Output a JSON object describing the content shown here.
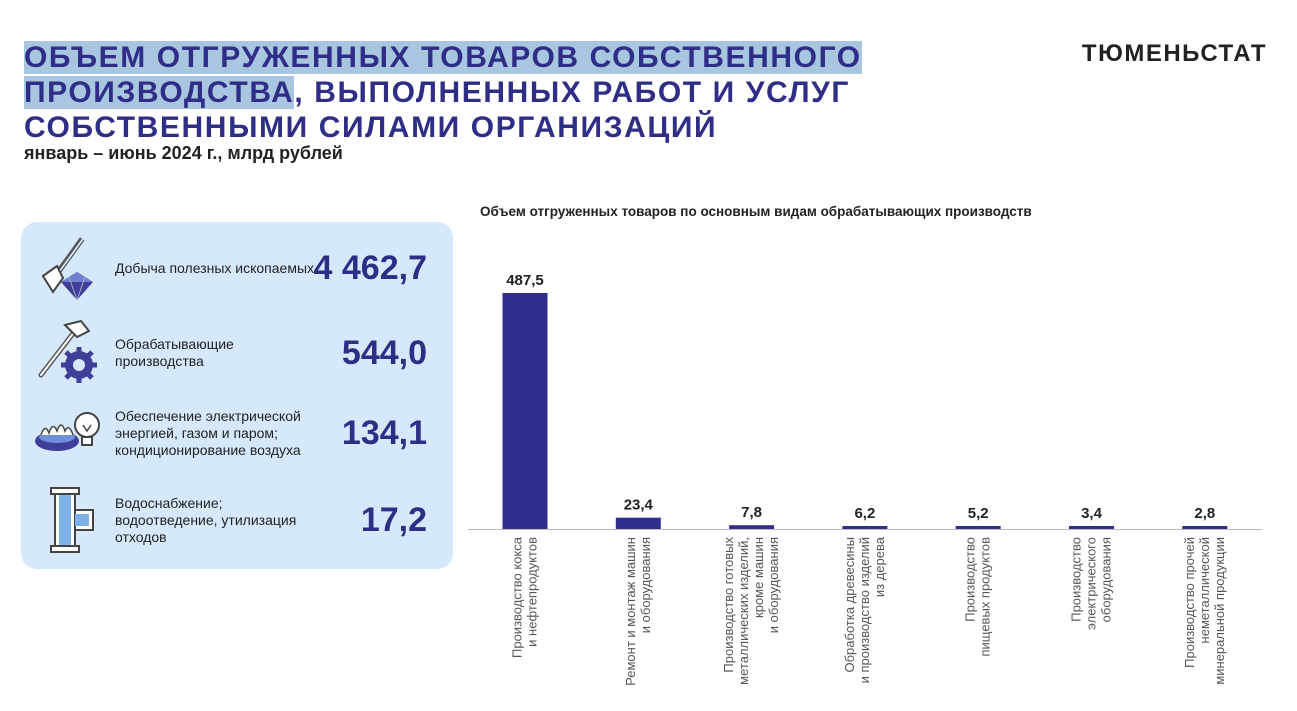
{
  "header": {
    "title_highlight": "ОБЪЕМ ОТГРУЖЕННЫХ ТОВАРОВ СОБСТВЕННОГО ПРОИЗВОДСТВА",
    "title_rest": ", ВЫПОЛНЕННЫХ РАБОТ И УСЛУГ СОБСТВЕННЫМИ СИЛАМИ ОРГАНИЗАЦИЙ",
    "subtitle": "январь – июнь 2024 г., млрд рублей",
    "brand": "ТЮМЕНЬСТАТ"
  },
  "panel": {
    "items": [
      {
        "label": "Добыча полезных ископаемых",
        "value": "4 462,7",
        "icon": "shovel-diamond-icon"
      },
      {
        "label": "Обрабатывающие производства",
        "value": "544,0",
        "icon": "hammer-gear-icon"
      },
      {
        "label": "Обеспечение электрической энергией, газом и паром; кондиционирование воздуха",
        "value": "134,1",
        "icon": "gas-burner-bulb-icon"
      },
      {
        "label": "Водоснабжение; водоотведение, утилизация отходов",
        "value": "17,2",
        "icon": "water-pipe-icon"
      }
    ]
  },
  "colors": {
    "accent": "#2e2e86",
    "bar": "#2e2e8e",
    "panel": "#d6e8fb",
    "highlight": "#a9c6e0"
  },
  "chart_data": {
    "type": "bar",
    "title": "Объем отгруженных товаров по основным видам обрабатывающих производств",
    "categories": [
      [
        "Производство кокса",
        "и нефтепродуктов"
      ],
      [
        "Ремонт и монтаж машин",
        "и оборудования"
      ],
      [
        "Производство готовых",
        "металлических изделий,",
        "кроме машин",
        "и оборудования"
      ],
      [
        "Обработка древесины",
        "и производство изделий",
        "из дерева"
      ],
      [
        "Производство",
        "пищевых продуктов"
      ],
      [
        "Производство",
        "электрического",
        "оборудования"
      ],
      [
        "Производство прочей",
        "неметаллической",
        "минеральной продукции"
      ]
    ],
    "values": [
      487.5,
      23.4,
      7.8,
      6.2,
      5.2,
      3.4,
      2.8
    ],
    "value_labels": [
      "487,5",
      "23,4",
      "7,8",
      "6,2",
      "5,2",
      "3,4",
      "2,8"
    ],
    "ylim": [
      0,
      487.5
    ],
    "grid": false
  }
}
